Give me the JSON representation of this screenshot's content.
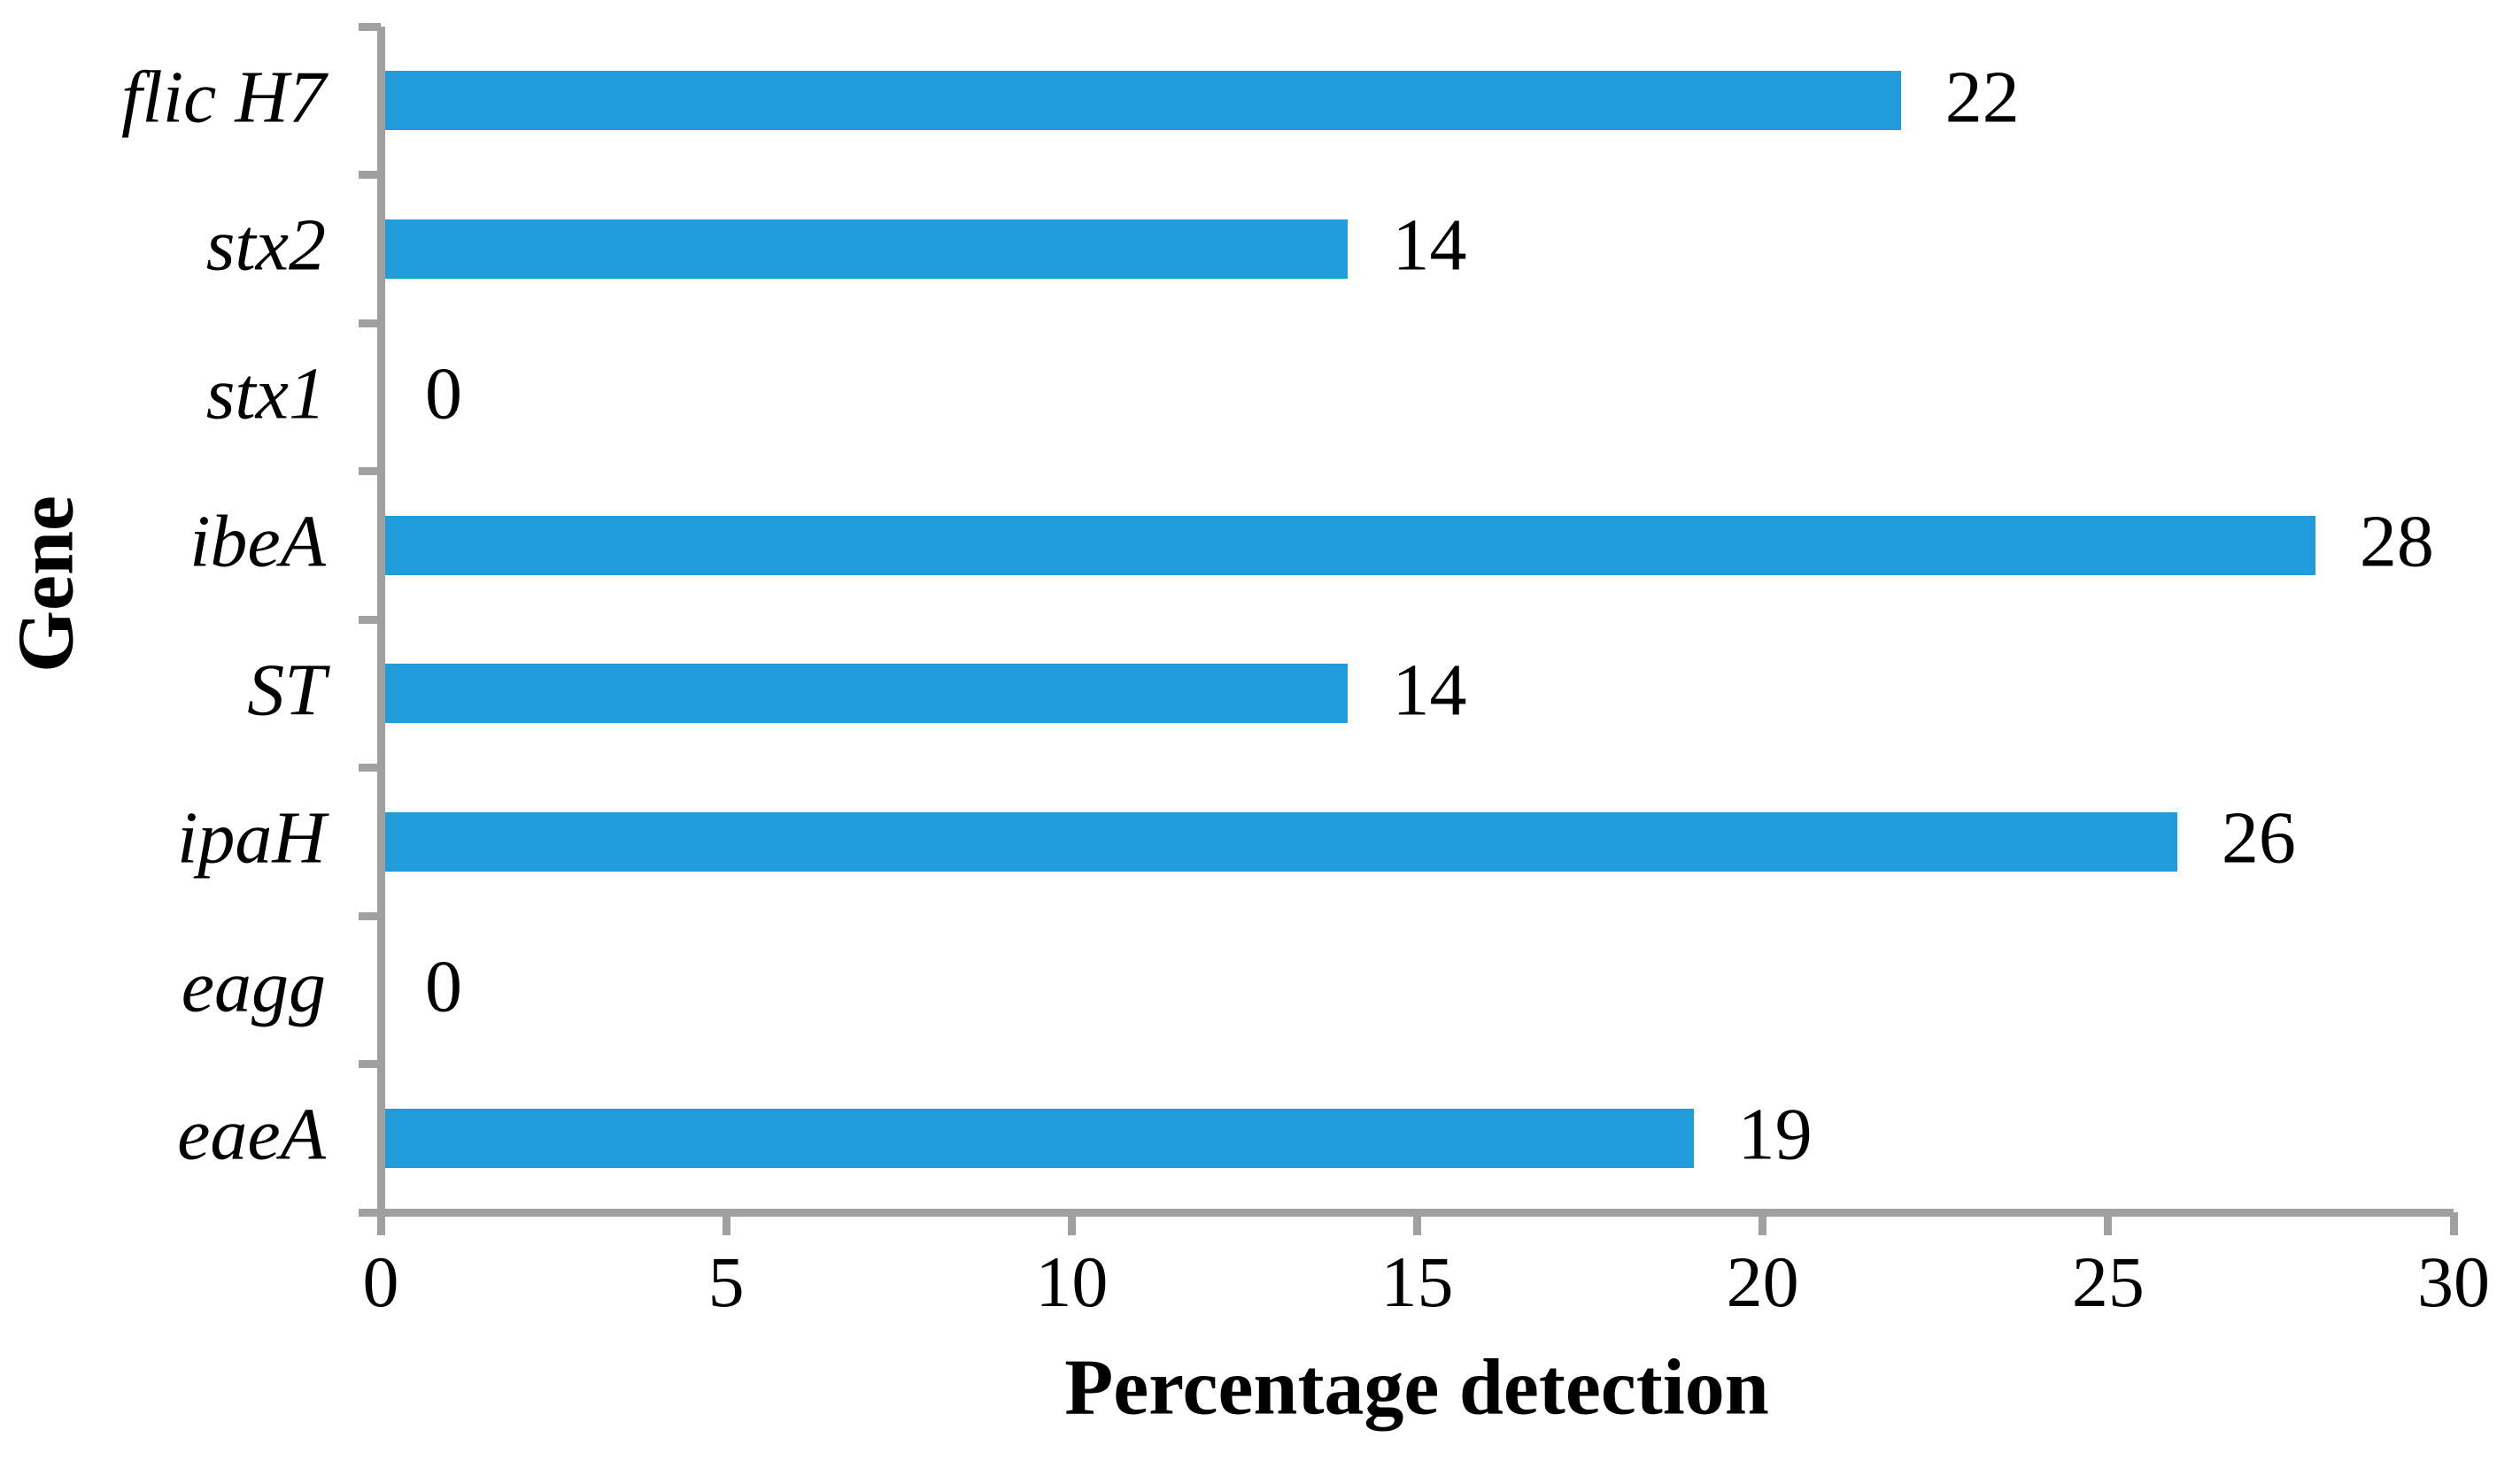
{
  "chart_data": {
    "type": "bar",
    "orientation": "horizontal",
    "title": "",
    "xlabel": "Percentage detection",
    "ylabel": "Gene",
    "categories": [
      "flic H7",
      "stx2",
      "stx1",
      "ibeA",
      "ST",
      "ipaH",
      "eagg",
      "eaeA"
    ],
    "values": [
      22,
      14,
      0,
      28,
      14,
      26,
      0,
      19
    ],
    "value_labels": [
      "22",
      "14",
      "0",
      "28",
      "14",
      "26",
      "0",
      "19"
    ],
    "x_ticks": [
      "0",
      "5",
      "10",
      "15",
      "20",
      "25",
      "30"
    ],
    "xlim": [
      0,
      30
    ],
    "grid": false,
    "legend": "none",
    "bar_color": "#1F9CD9",
    "axis_color": "#A0A0A0",
    "text_color": "#000000",
    "background_color": "#FFFFFF"
  }
}
